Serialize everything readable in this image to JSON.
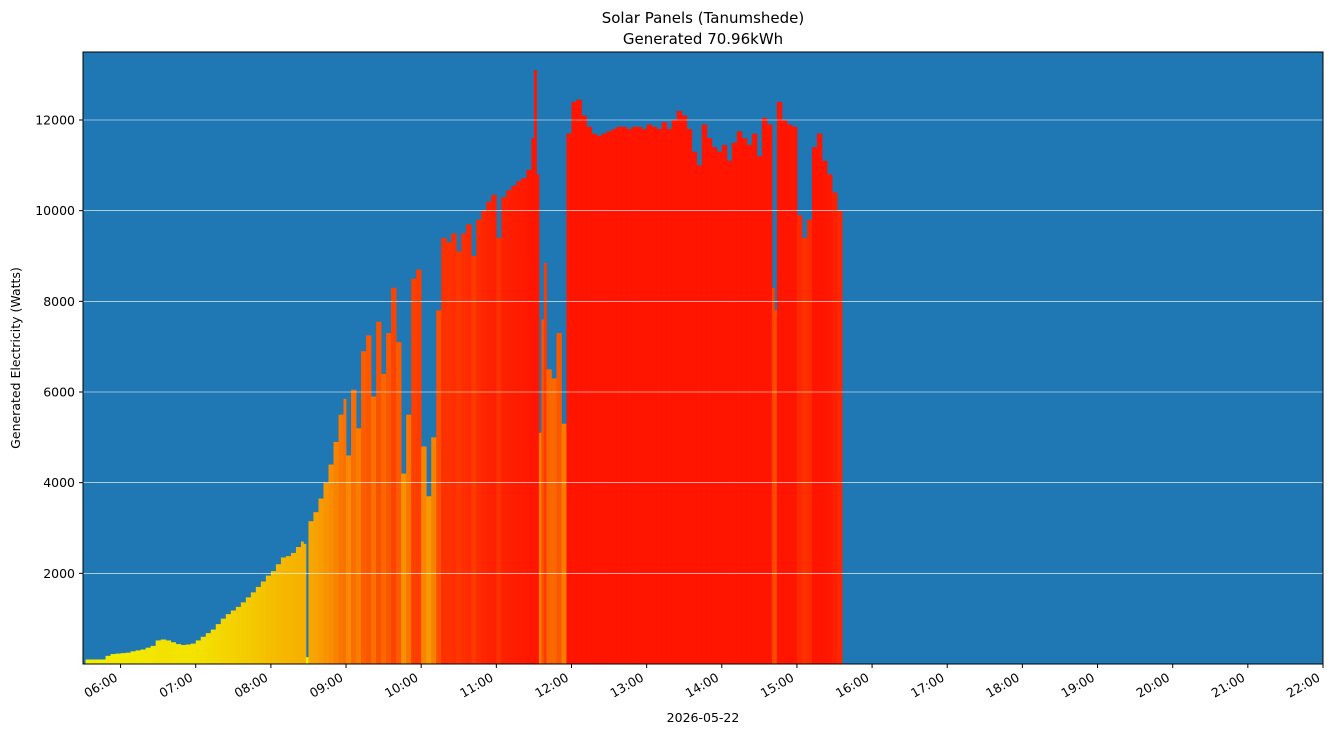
{
  "chart_data": {
    "type": "bar",
    "title": "Solar Panels (Tanumshede)",
    "subtitle": "Generated 70.96kWh",
    "xlabel": "2026-05-22",
    "ylabel": "Generated Electricity (Watts)",
    "xlim": [
      "05:30",
      "22:00"
    ],
    "ylim": [
      0,
      13500
    ],
    "grid": "horizontal",
    "x_tick_labels": [
      "06:00",
      "07:00",
      "08:00",
      "09:00",
      "10:00",
      "11:00",
      "12:00",
      "13:00",
      "14:00",
      "15:00",
      "16:00",
      "17:00",
      "18:00",
      "19:00",
      "20:00",
      "21:00",
      "22:00"
    ],
    "y_tick_labels": [
      "2000",
      "4000",
      "6000",
      "8000",
      "10000",
      "12000"
    ],
    "y_ticks": [
      2000,
      4000,
      6000,
      8000,
      10000,
      12000
    ],
    "colors": {
      "plot_background": "#1f77b4",
      "low_output": "#f2f200",
      "high_output": "#ff1500",
      "gridline": "#ffffff"
    },
    "color_scale": "yellow (low) to red (high) by watts",
    "bar_interval_minutes": 2,
    "series": [
      {
        "name": "",
        "points": [
          [
            "05:32",
            100
          ],
          [
            "05:36",
            100
          ],
          [
            "05:40",
            100
          ],
          [
            "05:44",
            100
          ],
          [
            "05:48",
            180
          ],
          [
            "05:52",
            220
          ],
          [
            "05:56",
            230
          ],
          [
            "06:00",
            240
          ],
          [
            "06:04",
            250
          ],
          [
            "06:08",
            280
          ],
          [
            "06:12",
            300
          ],
          [
            "06:16",
            320
          ],
          [
            "06:20",
            360
          ],
          [
            "06:24",
            400
          ],
          [
            "06:28",
            520
          ],
          [
            "06:32",
            540
          ],
          [
            "06:36",
            520
          ],
          [
            "06:40",
            480
          ],
          [
            "06:44",
            440
          ],
          [
            "06:48",
            420
          ],
          [
            "06:52",
            430
          ],
          [
            "06:56",
            450
          ],
          [
            "07:00",
            520
          ],
          [
            "07:04",
            600
          ],
          [
            "07:08",
            680
          ],
          [
            "07:12",
            760
          ],
          [
            "07:16",
            880
          ],
          [
            "07:20",
            1000
          ],
          [
            "07:24",
            1100
          ],
          [
            "07:28",
            1180
          ],
          [
            "07:32",
            1260
          ],
          [
            "07:36",
            1360
          ],
          [
            "07:40",
            1470
          ],
          [
            "07:44",
            1580
          ],
          [
            "07:48",
            1700
          ],
          [
            "07:52",
            1820
          ],
          [
            "07:56",
            1950
          ],
          [
            "08:00",
            2050
          ],
          [
            "08:04",
            2200
          ],
          [
            "08:08",
            2350
          ],
          [
            "08:12",
            2380
          ],
          [
            "08:16",
            2450
          ],
          [
            "08:20",
            2580
          ],
          [
            "08:24",
            2700
          ],
          [
            "08:26",
            2650
          ],
          [
            "08:28",
            150
          ],
          [
            "08:30",
            3150
          ],
          [
            "08:34",
            3350
          ],
          [
            "08:38",
            3650
          ],
          [
            "08:42",
            4000
          ],
          [
            "08:46",
            4400
          ],
          [
            "08:50",
            4900
          ],
          [
            "08:54",
            5500
          ],
          [
            "08:58",
            5850
          ],
          [
            "09:00",
            4600
          ],
          [
            "09:04",
            6050
          ],
          [
            "09:08",
            5200
          ],
          [
            "09:12",
            6900
          ],
          [
            "09:16",
            7250
          ],
          [
            "09:20",
            5900
          ],
          [
            "09:24",
            7550
          ],
          [
            "09:28",
            6400
          ],
          [
            "09:32",
            7300
          ],
          [
            "09:36",
            8300
          ],
          [
            "09:40",
            7100
          ],
          [
            "09:44",
            4200
          ],
          [
            "09:48",
            5500
          ],
          [
            "09:52",
            8500
          ],
          [
            "09:56",
            8700
          ],
          [
            "10:00",
            4800
          ],
          [
            "10:04",
            3700
          ],
          [
            "10:08",
            5000
          ],
          [
            "10:12",
            7800
          ],
          [
            "10:16",
            9400
          ],
          [
            "10:20",
            9300
          ],
          [
            "10:24",
            9500
          ],
          [
            "10:28",
            9100
          ],
          [
            "10:32",
            9500
          ],
          [
            "10:36",
            9700
          ],
          [
            "10:40",
            9000
          ],
          [
            "10:44",
            9800
          ],
          [
            "10:48",
            10000
          ],
          [
            "10:52",
            10200
          ],
          [
            "10:56",
            10350
          ],
          [
            "11:00",
            9400
          ],
          [
            "11:04",
            10300
          ],
          [
            "11:08",
            10450
          ],
          [
            "11:12",
            10550
          ],
          [
            "11:16",
            10650
          ],
          [
            "11:20",
            10720
          ],
          [
            "11:24",
            10900
          ],
          [
            "11:28",
            11600
          ],
          [
            "11:30",
            13100
          ],
          [
            "11:32",
            10800
          ],
          [
            "11:34",
            5100
          ],
          [
            "11:36",
            7600
          ],
          [
            "11:38",
            8850
          ],
          [
            "11:40",
            6500
          ],
          [
            "11:44",
            6300
          ],
          [
            "11:48",
            7300
          ],
          [
            "11:52",
            5300
          ],
          [
            "11:56",
            11700
          ],
          [
            "12:00",
            12400
          ],
          [
            "12:04",
            12450
          ],
          [
            "12:08",
            12100
          ],
          [
            "12:12",
            11850
          ],
          [
            "12:16",
            11700
          ],
          [
            "12:20",
            11650
          ],
          [
            "12:24",
            11700
          ],
          [
            "12:28",
            11750
          ],
          [
            "12:32",
            11800
          ],
          [
            "12:36",
            11850
          ],
          [
            "12:40",
            11850
          ],
          [
            "12:44",
            11800
          ],
          [
            "12:48",
            11850
          ],
          [
            "12:52",
            11850
          ],
          [
            "12:56",
            11800
          ],
          [
            "13:00",
            11900
          ],
          [
            "13:04",
            11850
          ],
          [
            "13:08",
            11800
          ],
          [
            "13:12",
            11950
          ],
          [
            "13:16",
            11800
          ],
          [
            "13:20",
            12000
          ],
          [
            "13:24",
            12200
          ],
          [
            "13:28",
            12100
          ],
          [
            "13:32",
            11800
          ],
          [
            "13:36",
            11300
          ],
          [
            "13:40",
            11000
          ],
          [
            "13:44",
            11900
          ],
          [
            "13:48",
            11600
          ],
          [
            "13:52",
            11400
          ],
          [
            "13:56",
            11300
          ],
          [
            "14:00",
            11450
          ],
          [
            "14:04",
            11100
          ],
          [
            "14:08",
            11500
          ],
          [
            "14:12",
            11750
          ],
          [
            "14:16",
            11600
          ],
          [
            "14:20",
            11450
          ],
          [
            "14:24",
            11700
          ],
          [
            "14:28",
            11200
          ],
          [
            "14:32",
            12050
          ],
          [
            "14:36",
            11900
          ],
          [
            "14:40",
            8300
          ],
          [
            "14:42",
            7800
          ],
          [
            "14:44",
            12400
          ],
          [
            "14:48",
            12000
          ],
          [
            "14:52",
            11900
          ],
          [
            "14:56",
            11850
          ],
          [
            "15:00",
            9900
          ],
          [
            "15:04",
            9400
          ],
          [
            "15:08",
            9800
          ],
          [
            "15:12",
            11400
          ],
          [
            "15:16",
            11700
          ],
          [
            "15:20",
            11100
          ],
          [
            "15:24",
            10800
          ],
          [
            "15:28",
            10400
          ],
          [
            "15:32",
            10000
          ],
          [
            "15:34",
            10000
          ]
        ]
      }
    ]
  }
}
